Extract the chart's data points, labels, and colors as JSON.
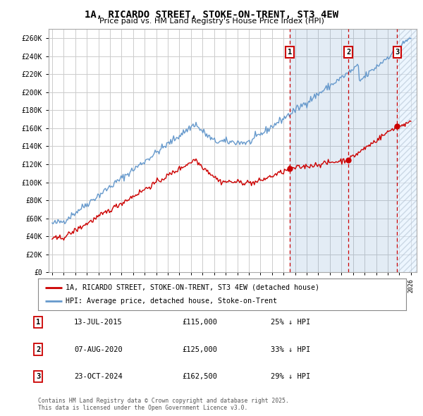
{
  "title": "1A, RICARDO STREET, STOKE-ON-TRENT, ST3 4EW",
  "subtitle": "Price paid vs. HM Land Registry's House Price Index (HPI)",
  "yticks": [
    0,
    20000,
    40000,
    60000,
    80000,
    100000,
    120000,
    140000,
    160000,
    180000,
    200000,
    220000,
    240000,
    260000
  ],
  "ytick_labels": [
    "£0",
    "£20K",
    "£40K",
    "£60K",
    "£80K",
    "£100K",
    "£120K",
    "£140K",
    "£160K",
    "£180K",
    "£200K",
    "£220K",
    "£240K",
    "£260K"
  ],
  "xlim": [
    1994.7,
    2026.5
  ],
  "ylim": [
    0,
    270000
  ],
  "sale1_date": "13-JUL-2015",
  "sale1_price": 115000,
  "sale1_hpi_pct": "25%",
  "sale1_year": 2015.53,
  "sale2_date": "07-AUG-2020",
  "sale2_price": 125000,
  "sale2_hpi_pct": "33%",
  "sale2_year": 2020.6,
  "sale3_date": "23-OCT-2024",
  "sale3_price": 162500,
  "sale3_hpi_pct": "29%",
  "sale3_year": 2024.81,
  "red_color": "#cc0000",
  "blue_color": "#6699cc",
  "blue_light": "#ddeeff",
  "grid_color": "#cccccc",
  "bg_color": "#ffffff",
  "legend_label_red": "1A, RICARDO STREET, STOKE-ON-TRENT, ST3 4EW (detached house)",
  "legend_label_blue": "HPI: Average price, detached house, Stoke-on-Trent",
  "footer": "Contains HM Land Registry data © Crown copyright and database right 2025.\nThis data is licensed under the Open Government Licence v3.0."
}
